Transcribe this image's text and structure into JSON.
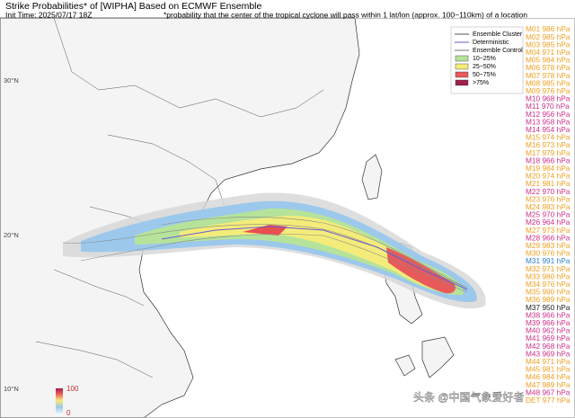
{
  "header": {
    "title": "Strike Probabilities* of [WIPHA] Based on ECMWF Ensemble",
    "init_time": "Init Time: 2025/07/17 18Z",
    "note": "*probability that the center of the tropical cyclone will pass within 1 lat/lon (approx. 100~110km) of a location"
  },
  "legend": {
    "items": [
      "Ensemble Cluster",
      "Deterministic",
      "Ensemble Control",
      "10~25%",
      "25~50%",
      "50~75%",
      ">75%"
    ]
  },
  "latitude_labels": [
    "30°N",
    "20°N",
    "10°N"
  ],
  "colorbar": {
    "max_label": "100",
    "min_label": "0"
  },
  "watermark": "头条 @中国气象爱好者",
  "members": [
    {
      "label": "M01 986 hPa",
      "color": "#f0a020"
    },
    {
      "label": "M02 985 hPa",
      "color": "#f0a020"
    },
    {
      "label": "M03 985 hPa",
      "color": "#f0a020"
    },
    {
      "label": "M04 971 hPa",
      "color": "#f0a020"
    },
    {
      "label": "M05 984 hPa",
      "color": "#f0a020"
    },
    {
      "label": "M06 978 hPa",
      "color": "#f0a020"
    },
    {
      "label": "M07 978 hPa",
      "color": "#f0a020"
    },
    {
      "label": "M08 985 hPa",
      "color": "#f0a020"
    },
    {
      "label": "M09 976 hPa",
      "color": "#f0a020"
    },
    {
      "label": "M10 968 hPa",
      "color": "#d03088"
    },
    {
      "label": "M11 970 hPa",
      "color": "#d03088"
    },
    {
      "label": "M12 956 hPa",
      "color": "#d03088"
    },
    {
      "label": "M13 958 hPa",
      "color": "#d03088"
    },
    {
      "label": "M14 954 hPa",
      "color": "#d03088"
    },
    {
      "label": "M15 974 hPa",
      "color": "#f0a020"
    },
    {
      "label": "M16 973 hPa",
      "color": "#f0a020"
    },
    {
      "label": "M17 979 hPa",
      "color": "#f0a020"
    },
    {
      "label": "M18 966 hPa",
      "color": "#d03088"
    },
    {
      "label": "M19 984 hPa",
      "color": "#f0a020"
    },
    {
      "label": "M20 974 hPa",
      "color": "#f0a020"
    },
    {
      "label": "M21 981 hPa",
      "color": "#f0a020"
    },
    {
      "label": "M22 970 hPa",
      "color": "#d03088"
    },
    {
      "label": "M23 976 hPa",
      "color": "#f0a020"
    },
    {
      "label": "M24 983 hPa",
      "color": "#f0a020"
    },
    {
      "label": "M25 970 hPa",
      "color": "#d03088"
    },
    {
      "label": "M26 964 hPa",
      "color": "#d03088"
    },
    {
      "label": "M27 973 hPa",
      "color": "#f0a020"
    },
    {
      "label": "M28 966 hPa",
      "color": "#d03088"
    },
    {
      "label": "M29 983 hPa",
      "color": "#f0a020"
    },
    {
      "label": "M30 976 hPa",
      "color": "#f0a020"
    },
    {
      "label": "M31 991 hPa",
      "color": "#2f7fd0"
    },
    {
      "label": "M32 971 hPa",
      "color": "#f0a020"
    },
    {
      "label": "M33 980 hPa",
      "color": "#f0a020"
    },
    {
      "label": "M34 976 hPa",
      "color": "#f0a020"
    },
    {
      "label": "M35 990 hPa",
      "color": "#f0a020"
    },
    {
      "label": "M36 989 hPa",
      "color": "#f0a020"
    },
    {
      "label": "M37 950 hPa",
      "color": "#222222"
    },
    {
      "label": "M38 966 hPa",
      "color": "#d03088"
    },
    {
      "label": "M39 966 hPa",
      "color": "#d03088"
    },
    {
      "label": "M40 962 hPa",
      "color": "#d03088"
    },
    {
      "label": "M41 969 hPa",
      "color": "#d03088"
    },
    {
      "label": "M42 968 hPa",
      "color": "#d03088"
    },
    {
      "label": "M43 969 hPa",
      "color": "#d03088"
    },
    {
      "label": "M44 971 hPa",
      "color": "#f0a020"
    },
    {
      "label": "M45 981 hPa",
      "color": "#f0a020"
    },
    {
      "label": "M46 984 hPa",
      "color": "#f0a020"
    },
    {
      "label": "M47 989 hPa",
      "color": "#f0a020"
    },
    {
      "label": "M48 967 hPa",
      "color": "#d03088"
    },
    {
      "label": "DET 977 hPa",
      "color": "#f0a020"
    }
  ]
}
